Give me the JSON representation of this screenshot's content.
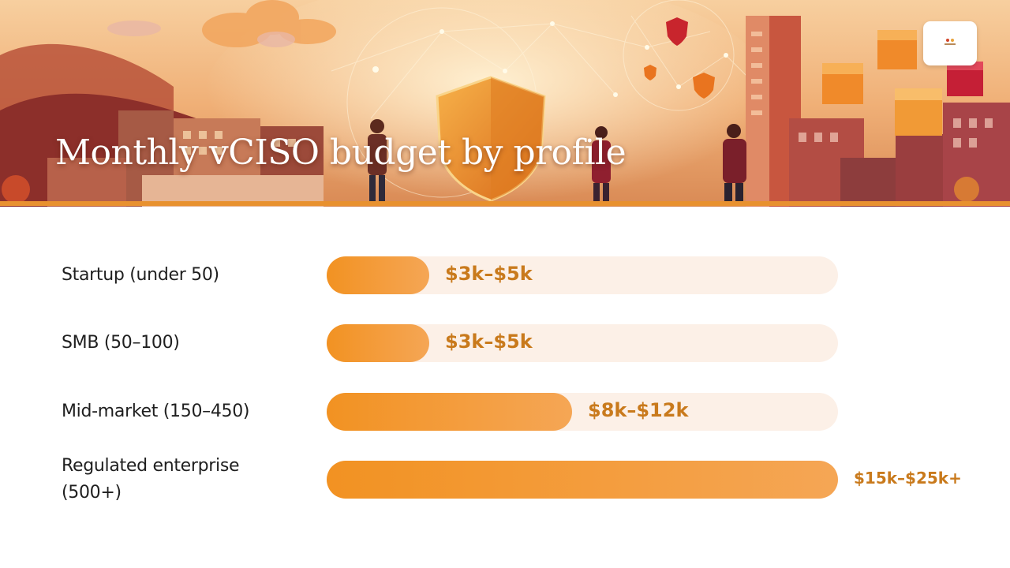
{
  "slide": {
    "title": "Monthly vCISO budget by profile"
  },
  "colors": {
    "bar_start": "#f29222",
    "bar_end": "#f5a655",
    "track": "#fcf0e7",
    "value_text": "#c97a1c",
    "header_stripe": "#e8912f"
  },
  "icons": {
    "logo": "company-logo-icon"
  },
  "chart_data": {
    "type": "bar",
    "orientation": "horizontal",
    "categories": [
      "Startup (under 50)",
      "SMB (50–100)",
      "Mid-market (150–450)",
      "Regulated enterprise (500+)"
    ],
    "label_lines": [
      [
        "Startup (under 50)"
      ],
      [
        "SMB (50–100)"
      ],
      [
        "Mid-market (150–450)"
      ],
      [
        "Regulated enterprise",
        "(500+)"
      ]
    ],
    "ranges": [
      {
        "low": 3,
        "high": 5
      },
      {
        "low": 3,
        "high": 5
      },
      {
        "low": 8,
        "high": 12
      },
      {
        "low": 15,
        "high": 25
      }
    ],
    "values": [
      5,
      5,
      12,
      25
    ],
    "value_labels": [
      "$3k–$5k",
      "$3k–$5k",
      "$8k–$12k",
      "$15k–$25k+"
    ],
    "unit": "$k per month",
    "xlim": [
      0,
      25
    ],
    "grid": false,
    "legend": "none"
  }
}
